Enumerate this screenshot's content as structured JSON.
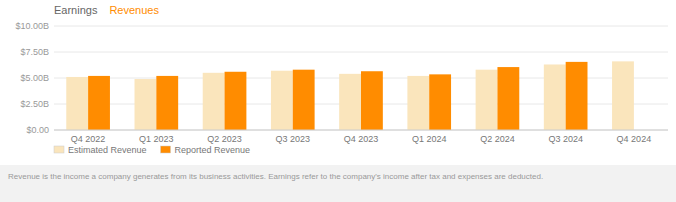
{
  "chart_data": {
    "type": "bar",
    "title": "Earnings",
    "subtitle": "Revenues",
    "categories": [
      "Q4 2022",
      "Q1 2023",
      "Q2 2023",
      "Q3 2023",
      "Q4 2023",
      "Q1 2024",
      "Q2 2024",
      "Q3 2024",
      "Q4 2024"
    ],
    "series": [
      {
        "name": "Estimated Revenue",
        "color": "#FAE5BC",
        "values": [
          5.1,
          4.9,
          5.5,
          5.7,
          5.4,
          5.2,
          5.8,
          6.3,
          6.6
        ]
      },
      {
        "name": "Reported Revenue",
        "color": "#FF8C00",
        "values": [
          5.2,
          5.2,
          5.6,
          5.8,
          5.65,
          5.35,
          6.05,
          6.55,
          0.0
        ]
      }
    ],
    "ylim": [
      0,
      10.0
    ],
    "yticks": [
      {
        "value": 0,
        "label": "$0.00"
      },
      {
        "value": 2.5,
        "label": "$2.50B"
      },
      {
        "value": 5.0,
        "label": "$5.00B"
      },
      {
        "value": 7.5,
        "label": "$7.50B"
      },
      {
        "value": 10.0,
        "label": "$10.00B"
      }
    ],
    "grid": true,
    "legend": "bottom",
    "annotations": [
      "Revenue is the income a company generates from its business activities. Earnings refer to the company's income after tax and expenses are deducted."
    ]
  }
}
